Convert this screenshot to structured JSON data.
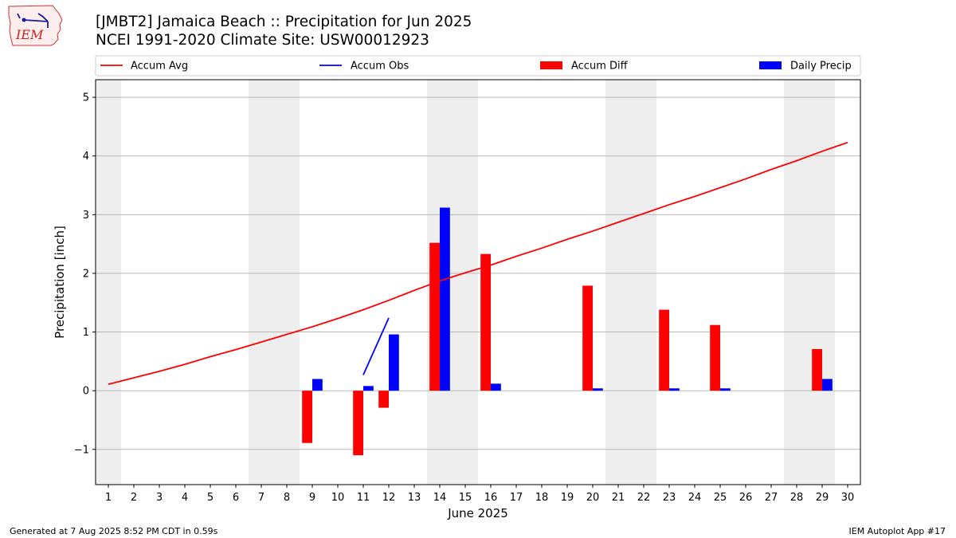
{
  "logo": {
    "text": "IEM"
  },
  "header": {
    "title_line1": "[JMBT2] Jamaica Beach :: Precipitation for Jun 2025",
    "title_line2": "NCEI 1991-2020 Climate Site: USW00012923"
  },
  "footer": {
    "left": "Generated at 7 Aug 2025 8:52 PM CDT in 0.59s",
    "right": "IEM Autoplot App #17"
  },
  "colors": {
    "avg": "#ff0000",
    "obs": "#0000ff",
    "diff": "#ff0000",
    "daily": "#0000ff",
    "weekend": "#eeeeee",
    "grid": "#b0b0b0"
  },
  "chart_data": {
    "type": "bar",
    "xlabel": "June 2025",
    "ylabel": "Precipitation [inch]",
    "ylim": [
      -1.6,
      5.3
    ],
    "yticks": [
      -1,
      0,
      1,
      2,
      3,
      4,
      5
    ],
    "ytick_labels": [
      "−1",
      "0",
      "1",
      "2",
      "3",
      "4",
      "5"
    ],
    "grid": "horizontal",
    "legend_placement": "top",
    "x": [
      1,
      2,
      3,
      4,
      5,
      6,
      7,
      8,
      9,
      10,
      11,
      12,
      13,
      14,
      15,
      16,
      17,
      18,
      19,
      20,
      21,
      22,
      23,
      24,
      25,
      26,
      27,
      28,
      29,
      30
    ],
    "weekend_days": [
      1,
      7,
      8,
      14,
      15,
      21,
      22,
      28,
      29
    ],
    "series": [
      {
        "name": "Accum Avg",
        "type": "line",
        "values": [
          0.11,
          0.22,
          0.33,
          0.45,
          0.58,
          0.7,
          0.83,
          0.96,
          1.09,
          1.23,
          1.38,
          1.54,
          1.71,
          1.87,
          2.01,
          2.14,
          2.29,
          2.43,
          2.58,
          2.72,
          2.87,
          3.02,
          3.17,
          3.31,
          3.46,
          3.61,
          3.77,
          3.92,
          4.08,
          4.23
        ]
      },
      {
        "name": "Accum Obs",
        "type": "line",
        "values": [
          null,
          null,
          null,
          null,
          null,
          null,
          null,
          null,
          null,
          null,
          0.27,
          1.24,
          null,
          null,
          null,
          null,
          null,
          null,
          null,
          null,
          null,
          null,
          null,
          null,
          null,
          null,
          null,
          null,
          null,
          null
        ]
      },
      {
        "name": "Accum Diff",
        "type": "bar",
        "values": [
          null,
          null,
          null,
          null,
          null,
          null,
          null,
          null,
          -0.89,
          null,
          -1.1,
          -0.29,
          null,
          2.52,
          null,
          2.33,
          null,
          null,
          null,
          1.79,
          null,
          null,
          1.38,
          null,
          1.12,
          null,
          null,
          null,
          0.71,
          null
        ]
      },
      {
        "name": "Daily Precip",
        "type": "bar",
        "values": [
          null,
          null,
          null,
          null,
          null,
          null,
          null,
          null,
          0.2,
          null,
          0.08,
          0.96,
          null,
          3.12,
          null,
          0.12,
          null,
          null,
          null,
          0.04,
          null,
          null,
          0.04,
          null,
          0.04,
          null,
          null,
          null,
          0.2,
          null
        ]
      }
    ]
  }
}
